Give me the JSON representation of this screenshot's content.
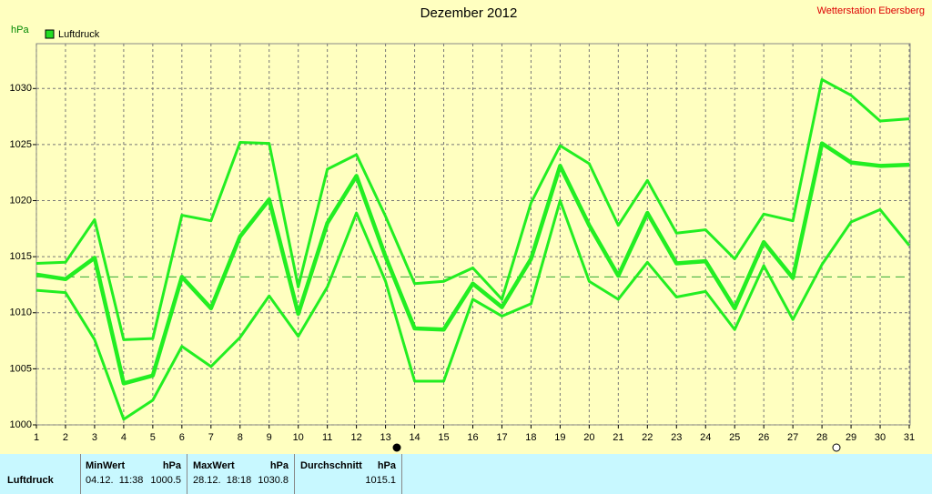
{
  "chart_data": {
    "type": "line",
    "title": "Dezember 2012",
    "station": "Wetterstation Ebersberg",
    "y_label": "hPa",
    "legend": "Luftdruck",
    "legend_color": "#22dd22",
    "x": [
      1,
      2,
      3,
      4,
      5,
      6,
      7,
      8,
      9,
      10,
      11,
      12,
      13,
      14,
      15,
      16,
      17,
      18,
      19,
      20,
      21,
      22,
      23,
      24,
      25,
      26,
      27,
      28,
      29,
      30,
      31
    ],
    "xlim": [
      1,
      31
    ],
    "xticks": [
      1,
      2,
      3,
      4,
      5,
      6,
      7,
      8,
      9,
      10,
      11,
      12,
      13,
      14,
      15,
      16,
      17,
      18,
      19,
      20,
      21,
      22,
      23,
      24,
      25,
      26,
      27,
      28,
      29,
      30,
      31
    ],
    "ylim": [
      1000,
      1034
    ],
    "yticks": [
      1000,
      1005,
      1010,
      1015,
      1020,
      1025,
      1030
    ],
    "grid": true,
    "reference_line": 1013.2,
    "reference_color": "#33aa33",
    "series": [
      {
        "color": "#22ee22",
        "width": 3,
        "values": [
          1014.4,
          1014.5,
          1018.3,
          1007.6,
          1007.7,
          1018.7,
          1018.2,
          1025.2,
          1025.1,
          1012.3,
          1022.8,
          1024.1,
          1018.6,
          1012.6,
          1012.8,
          1014.0,
          1011.2,
          1019.8,
          1024.9,
          1023.3,
          1017.8,
          1021.8,
          1017.1,
          1017.4,
          1014.8,
          1018.8,
          1018.2,
          1030.8,
          1029.4,
          1027.1,
          1027.3
        ]
      },
      {
        "color": "#22ee22",
        "width": 4.5,
        "values": [
          1013.4,
          1013.0,
          1014.9,
          1003.7,
          1004.4,
          1013.2,
          1010.4,
          1016.8,
          1020.1,
          1009.9,
          1018.0,
          1022.2,
          1015.0,
          1008.6,
          1008.5,
          1012.6,
          1010.5,
          1014.8,
          1023.1,
          1017.8,
          1013.3,
          1018.9,
          1014.4,
          1014.6,
          1010.4,
          1016.3,
          1013.1,
          1025.1,
          1023.4,
          1023.1,
          1023.2
        ]
      },
      {
        "color": "#22ee22",
        "width": 3,
        "values": [
          1012.0,
          1011.8,
          1007.6,
          1000.5,
          1002.2,
          1007.0,
          1005.2,
          1007.8,
          1011.5,
          1007.9,
          1012.3,
          1018.9,
          1012.8,
          1003.9,
          1003.9,
          1011.2,
          1009.7,
          1010.8,
          1020.0,
          1012.8,
          1011.2,
          1014.5,
          1011.4,
          1011.9,
          1008.5,
          1014.2,
          1009.4,
          1014.3,
          1018.1,
          1019.2,
          1016.0
        ]
      }
    ]
  },
  "table": {
    "label": "Luftdruck",
    "columns": [
      {
        "name": "MinWert",
        "unit": "hPa",
        "time": "04.12.  11:38",
        "value": "1000.5"
      },
      {
        "name": "MaxWert",
        "unit": "hPa",
        "time": "28.12.  18:18",
        "value": "1030.8"
      },
      {
        "name": "Durchschnitt",
        "unit": "hPa",
        "value": "1015.1"
      }
    ]
  }
}
